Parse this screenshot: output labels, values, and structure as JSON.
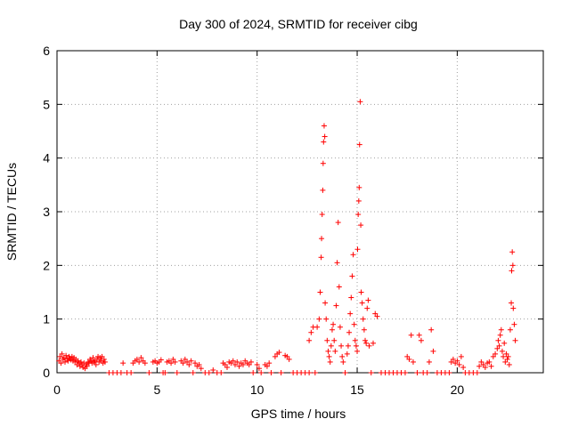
{
  "chart_data": {
    "type": "scatter",
    "title": "Day 300 of 2024, SRMTID for receiver cibg",
    "xlabel": "GPS time / hours",
    "ylabel": "SRMTID / TECUs",
    "xlim": [
      0,
      24.3
    ],
    "ylim": [
      0,
      6
    ],
    "xticks": [
      0,
      5,
      10,
      15,
      20
    ],
    "yticks": [
      0,
      1,
      2,
      3,
      4,
      5,
      6
    ],
    "grid": true,
    "marker": "+",
    "color": "#ff0000",
    "series": [
      {
        "name": "SRMTID",
        "points": [
          [
            0.1,
            0.22
          ],
          [
            0.15,
            0.3
          ],
          [
            0.2,
            0.18
          ],
          [
            0.25,
            0.35
          ],
          [
            0.3,
            0.25
          ],
          [
            0.35,
            0.28
          ],
          [
            0.4,
            0.2
          ],
          [
            0.45,
            0.32
          ],
          [
            0.5,
            0.26
          ],
          [
            0.55,
            0.22
          ],
          [
            0.6,
            0.3
          ],
          [
            0.65,
            0.27
          ],
          [
            0.7,
            0.24
          ],
          [
            0.75,
            0.3
          ],
          [
            0.8,
            0.22
          ],
          [
            0.85,
            0.28
          ],
          [
            0.9,
            0.2
          ],
          [
            0.95,
            0.25
          ],
          [
            1.0,
            0.15
          ],
          [
            1.05,
            0.22
          ],
          [
            1.1,
            0.18
          ],
          [
            1.15,
            0.12
          ],
          [
            1.2,
            0.2
          ],
          [
            1.25,
            0.15
          ],
          [
            1.3,
            0.1
          ],
          [
            1.35,
            0.18
          ],
          [
            1.4,
            0.08
          ],
          [
            1.45,
            0.15
          ],
          [
            1.5,
            0.12
          ],
          [
            1.55,
            0.2
          ],
          [
            1.6,
            0.18
          ],
          [
            1.65,
            0.25
          ],
          [
            1.7,
            0.22
          ],
          [
            1.75,
            0.18
          ],
          [
            1.8,
            0.28
          ],
          [
            1.85,
            0.2
          ],
          [
            1.9,
            0.22
          ],
          [
            1.95,
            0.15
          ],
          [
            2.0,
            0.25
          ],
          [
            2.05,
            0.3
          ],
          [
            2.1,
            0.2
          ],
          [
            2.15,
            0.28
          ],
          [
            2.2,
            0.22
          ],
          [
            2.25,
            0.3
          ],
          [
            2.3,
            0.18
          ],
          [
            2.35,
            0.25
          ],
          [
            2.4,
            0.2
          ],
          [
            2.6,
            0.0
          ],
          [
            2.8,
            0.0
          ],
          [
            3.0,
            0.0
          ],
          [
            3.2,
            0.0
          ],
          [
            3.3,
            0.18
          ],
          [
            3.5,
            0.0
          ],
          [
            3.7,
            0.0
          ],
          [
            3.8,
            0.18
          ],
          [
            3.9,
            0.22
          ],
          [
            4.0,
            0.25
          ],
          [
            4.1,
            0.2
          ],
          [
            4.2,
            0.28
          ],
          [
            4.3,
            0.22
          ],
          [
            4.4,
            0.18
          ],
          [
            4.6,
            0.0
          ],
          [
            4.8,
            0.2
          ],
          [
            4.9,
            0.22
          ],
          [
            5.0,
            0.18
          ],
          [
            5.1,
            0.2
          ],
          [
            5.2,
            0.24
          ],
          [
            5.3,
            0.0
          ],
          [
            5.4,
            0.0
          ],
          [
            5.5,
            0.2
          ],
          [
            5.6,
            0.22
          ],
          [
            5.7,
            0.18
          ],
          [
            5.8,
            0.25
          ],
          [
            5.9,
            0.2
          ],
          [
            6.0,
            0.0
          ],
          [
            6.2,
            0.22
          ],
          [
            6.3,
            0.18
          ],
          [
            6.4,
            0.25
          ],
          [
            6.5,
            0.2
          ],
          [
            6.6,
            0.15
          ],
          [
            6.7,
            0.22
          ],
          [
            6.8,
            0.0
          ],
          [
            6.9,
            0.18
          ],
          [
            7.0,
            0.12
          ],
          [
            7.1,
            0.15
          ],
          [
            7.2,
            0.08
          ],
          [
            7.4,
            0.0
          ],
          [
            7.6,
            0.0
          ],
          [
            7.8,
            0.05
          ],
          [
            8.0,
            0.0
          ],
          [
            8.2,
            0.0
          ],
          [
            8.3,
            0.18
          ],
          [
            8.4,
            0.15
          ],
          [
            8.5,
            0.1
          ],
          [
            8.6,
            0.2
          ],
          [
            8.7,
            0.18
          ],
          [
            8.8,
            0.22
          ],
          [
            8.9,
            0.15
          ],
          [
            9.0,
            0.2
          ],
          [
            9.1,
            0.12
          ],
          [
            9.2,
            0.18
          ],
          [
            9.3,
            0.15
          ],
          [
            9.4,
            0.22
          ],
          [
            9.5,
            0.18
          ],
          [
            9.6,
            0.15
          ],
          [
            9.7,
            0.2
          ],
          [
            9.8,
            0.0
          ],
          [
            10.0,
            0.15
          ],
          [
            10.1,
            0.08
          ],
          [
            10.2,
            0.0
          ],
          [
            10.4,
            0.15
          ],
          [
            10.5,
            0.12
          ],
          [
            10.6,
            0.18
          ],
          [
            10.7,
            0.0
          ],
          [
            10.9,
            0.3
          ],
          [
            11.0,
            0.35
          ],
          [
            11.1,
            0.38
          ],
          [
            11.2,
            0.0
          ],
          [
            11.4,
            0.32
          ],
          [
            11.5,
            0.3
          ],
          [
            11.6,
            0.25
          ],
          [
            11.8,
            0.0
          ],
          [
            12.0,
            0.0
          ],
          [
            12.2,
            0.0
          ],
          [
            12.4,
            0.0
          ],
          [
            12.6,
            0.0
          ],
          [
            12.6,
            0.6
          ],
          [
            12.7,
            0.75
          ],
          [
            12.8,
            0.85
          ],
          [
            12.9,
            0.0
          ],
          [
            13.0,
            0.85
          ],
          [
            13.1,
            1.0
          ],
          [
            13.15,
            1.5
          ],
          [
            13.2,
            2.15
          ],
          [
            13.22,
            2.5
          ],
          [
            13.25,
            2.95
          ],
          [
            13.28,
            3.4
          ],
          [
            13.3,
            3.9
          ],
          [
            13.32,
            4.3
          ],
          [
            13.35,
            4.6
          ],
          [
            13.38,
            4.4
          ],
          [
            13.4,
            1.3
          ],
          [
            13.45,
            1.0
          ],
          [
            13.5,
            0.6
          ],
          [
            13.55,
            0.4
          ],
          [
            13.6,
            0.3
          ],
          [
            13.65,
            0.2
          ],
          [
            13.7,
            0.5
          ],
          [
            13.75,
            0.8
          ],
          [
            13.8,
            0.9
          ],
          [
            13.85,
            0.6
          ],
          [
            13.9,
            0.4
          ],
          [
            13.95,
            1.25
          ],
          [
            14.0,
            2.05
          ],
          [
            14.05,
            2.8
          ],
          [
            14.1,
            1.6
          ],
          [
            14.15,
            0.85
          ],
          [
            14.2,
            0.5
          ],
          [
            14.25,
            0.3
          ],
          [
            14.3,
            0.2
          ],
          [
            14.4,
            0.0
          ],
          [
            14.5,
            0.35
          ],
          [
            14.55,
            0.5
          ],
          [
            14.6,
            0.75
          ],
          [
            14.65,
            1.1
          ],
          [
            14.7,
            1.4
          ],
          [
            14.75,
            1.8
          ],
          [
            14.8,
            2.2
          ],
          [
            14.85,
            0.9
          ],
          [
            14.9,
            0.6
          ],
          [
            14.95,
            0.5
          ],
          [
            15.0,
            0.4
          ],
          [
            15.02,
            2.3
          ],
          [
            15.05,
            2.95
          ],
          [
            15.08,
            3.2
          ],
          [
            15.1,
            3.45
          ],
          [
            15.12,
            4.25
          ],
          [
            15.15,
            5.05
          ],
          [
            15.18,
            2.75
          ],
          [
            15.2,
            1.5
          ],
          [
            15.25,
            1.3
          ],
          [
            15.3,
            1.0
          ],
          [
            15.35,
            0.8
          ],
          [
            15.4,
            0.6
          ],
          [
            15.45,
            0.55
          ],
          [
            15.5,
            1.2
          ],
          [
            15.55,
            1.35
          ],
          [
            15.6,
            0.5
          ],
          [
            15.7,
            0.0
          ],
          [
            15.8,
            0.55
          ],
          [
            15.9,
            1.1
          ],
          [
            16.0,
            1.05
          ],
          [
            16.2,
            0.0
          ],
          [
            16.4,
            0.0
          ],
          [
            16.6,
            0.0
          ],
          [
            16.8,
            0.0
          ],
          [
            17.0,
            0.0
          ],
          [
            17.2,
            0.0
          ],
          [
            17.4,
            0.0
          ],
          [
            17.5,
            0.3
          ],
          [
            17.6,
            0.25
          ],
          [
            17.7,
            0.7
          ],
          [
            17.8,
            0.2
          ],
          [
            18.0,
            0.0
          ],
          [
            18.1,
            0.7
          ],
          [
            18.2,
            0.6
          ],
          [
            18.3,
            0.0
          ],
          [
            18.5,
            0.0
          ],
          [
            18.6,
            0.2
          ],
          [
            18.7,
            0.8
          ],
          [
            18.8,
            0.4
          ],
          [
            19.0,
            0.0
          ],
          [
            19.2,
            0.0
          ],
          [
            19.4,
            0.0
          ],
          [
            19.6,
            0.0
          ],
          [
            19.7,
            0.2
          ],
          [
            19.8,
            0.25
          ],
          [
            19.9,
            0.18
          ],
          [
            20.0,
            0.22
          ],
          [
            20.1,
            0.15
          ],
          [
            20.2,
            0.3
          ],
          [
            20.3,
            0.1
          ],
          [
            20.4,
            0.0
          ],
          [
            20.6,
            0.0
          ],
          [
            20.8,
            0.0
          ],
          [
            21.0,
            0.0
          ],
          [
            21.1,
            0.12
          ],
          [
            21.2,
            0.2
          ],
          [
            21.3,
            0.15
          ],
          [
            21.4,
            0.1
          ],
          [
            21.5,
            0.18
          ],
          [
            21.6,
            0.2
          ],
          [
            21.7,
            0.12
          ],
          [
            21.8,
            0.3
          ],
          [
            21.9,
            0.35
          ],
          [
            22.0,
            0.45
          ],
          [
            22.05,
            0.6
          ],
          [
            22.1,
            0.5
          ],
          [
            22.15,
            0.7
          ],
          [
            22.2,
            0.8
          ],
          [
            22.25,
            0.4
          ],
          [
            22.3,
            0.3
          ],
          [
            22.35,
            0.55
          ],
          [
            22.4,
            0.2
          ],
          [
            22.45,
            0.35
          ],
          [
            22.5,
            0.25
          ],
          [
            22.55,
            0.3
          ],
          [
            22.6,
            0.15
          ],
          [
            22.65,
            0.8
          ],
          [
            22.7,
            1.3
          ],
          [
            22.72,
            1.9
          ],
          [
            22.75,
            2.25
          ],
          [
            22.78,
            2.0
          ],
          [
            22.8,
            1.2
          ],
          [
            22.85,
            0.9
          ],
          [
            22.9,
            0.6
          ]
        ]
      }
    ]
  }
}
